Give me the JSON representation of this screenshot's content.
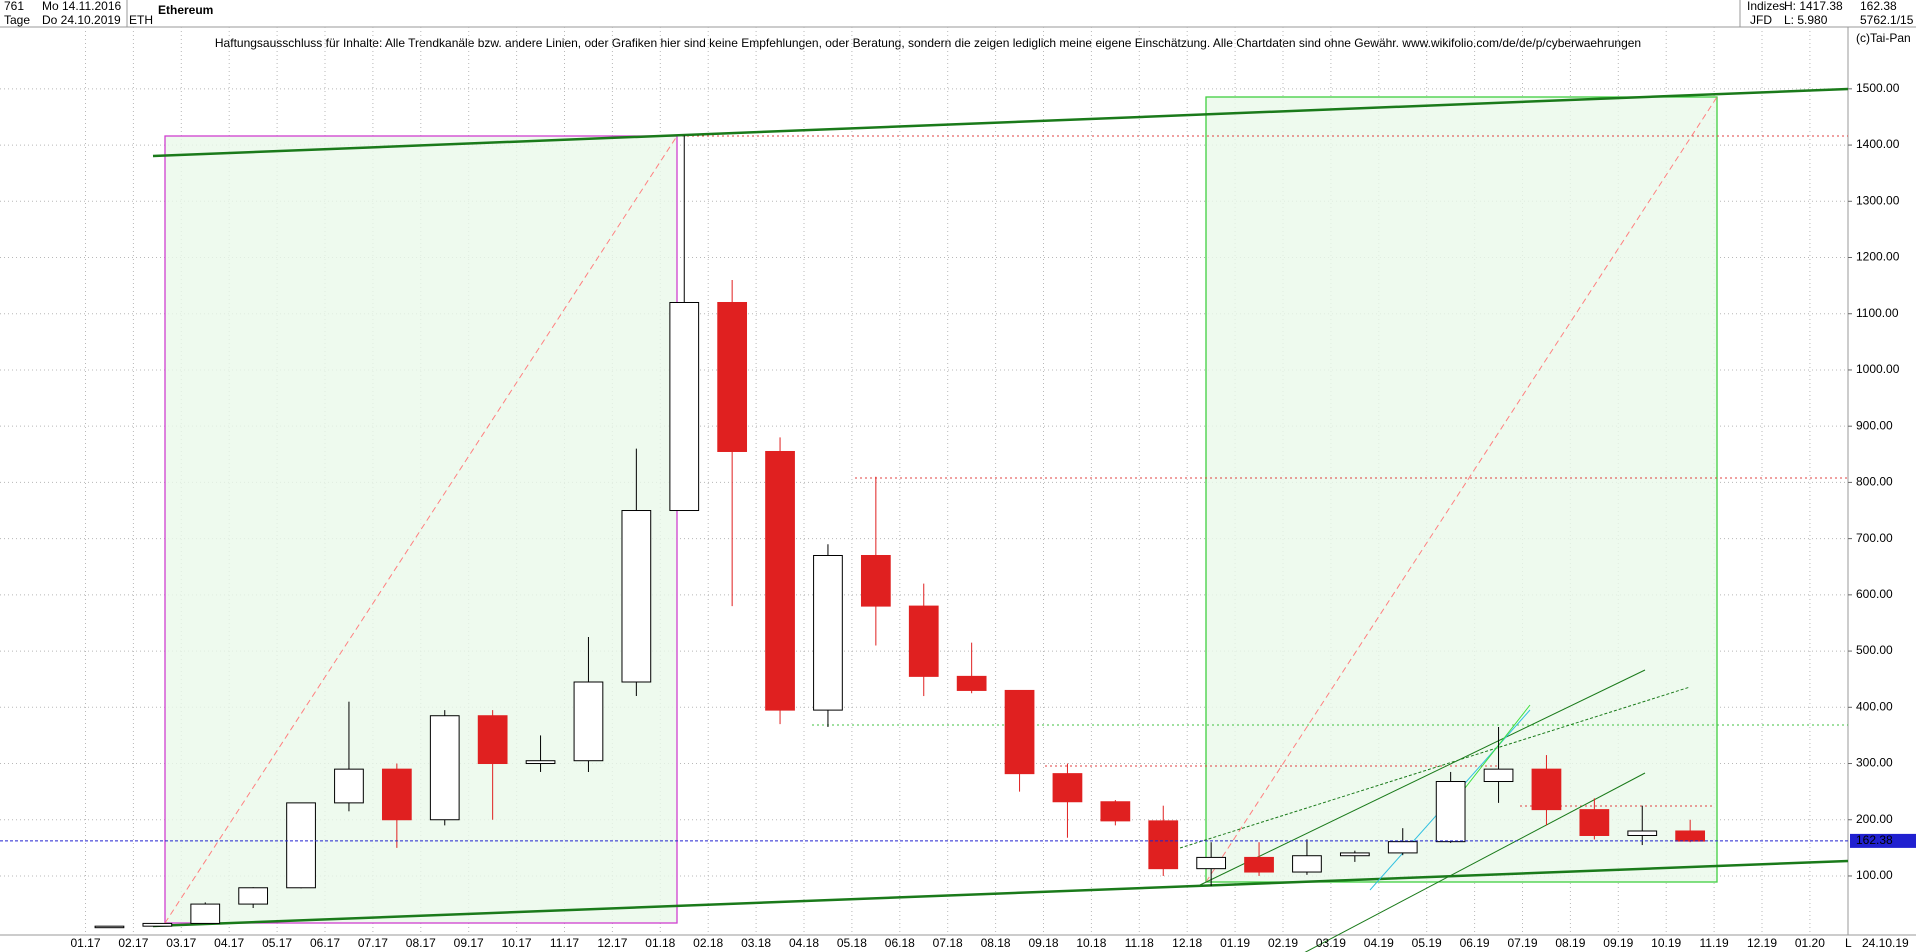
{
  "header": {
    "count": "761",
    "start_date": "Mo 14.11.2016",
    "period": "Tage",
    "end_date": "Do 24.10.2019",
    "symbol": "ETH",
    "name": "Ethereum",
    "market": "Indizes",
    "broker": "JFD",
    "high": "H: 1417.38",
    "low": "L: 5.980",
    "last": "162.38",
    "chart_id": "5762.1/15",
    "copyright": "(c)Tai-Pan",
    "date_label": "24.10.19",
    "scale_mode": "L"
  },
  "chart_data": {
    "type": "candlestick",
    "annotation": "Haftungsausschluss für Inhalte: Alle Trendkanäle bzw. andere Linien, oder Grafiken hier sind keine Empfehlungen, oder Beratung, sondern die zeigen lediglich meine eigene Einschätzung. Alle Chartdaten sind ohne Gewähr.  www.wikifolio.com/de/de/p/cyberwaehrungen",
    "categories": [
      "01.17",
      "02.17",
      "03.17",
      "04.17",
      "05.17",
      "06.17",
      "07.17",
      "08.17",
      "09.17",
      "10.17",
      "11.17",
      "12.17",
      "01.18",
      "02.18",
      "03.18",
      "04.18",
      "05.18",
      "06.18",
      "07.18",
      "08.18",
      "09.18",
      "10.18",
      "11.18",
      "12.18",
      "01.19",
      "02.19",
      "03.19",
      "04.19",
      "05.19",
      "06.19",
      "07.19",
      "08.19",
      "09.19",
      "10.19",
      "11.19",
      "12.19",
      "01.20"
    ],
    "open": [
      8,
      10.7,
      15.6,
      50,
      79,
      230,
      290,
      200,
      385,
      300,
      305,
      445,
      750,
      1120,
      855,
      395,
      670,
      580,
      455,
      430,
      282,
      232,
      198,
      113,
      133,
      107,
      136,
      141,
      161,
      268,
      290,
      218,
      172,
      180,
      null,
      null,
      null
    ],
    "high": [
      11,
      16,
      53,
      80,
      230,
      410,
      300,
      395,
      395,
      350,
      525,
      860,
      1417,
      1160,
      880,
      690,
      810,
      620,
      515,
      430,
      300,
      235,
      225,
      160,
      160,
      165,
      145,
      185,
      285,
      365,
      315,
      238,
      225,
      200,
      null,
      null,
      null
    ],
    "low": [
      8,
      10.5,
      15.5,
      43,
      78,
      215,
      150,
      190,
      200,
      285,
      285,
      420,
      750,
      580,
      370,
      365,
      510,
      420,
      425,
      250,
      168,
      190,
      100,
      82,
      100,
      102,
      125,
      137,
      159,
      230,
      190,
      165,
      155,
      160,
      null,
      null,
      null
    ],
    "close": [
      10.7,
      15.6,
      50,
      79,
      230,
      290,
      200,
      385,
      300,
      305,
      445,
      750,
      1120,
      855,
      395,
      670,
      580,
      455,
      430,
      282,
      232,
      198,
      113,
      133,
      107,
      136,
      141,
      161,
      268,
      290,
      218,
      172,
      180,
      162,
      null,
      null,
      null
    ],
    "up_color": "#000000",
    "down_color": "#e02020",
    "last_price": 162.38,
    "last_price_color": "#2020d0",
    "ylim": [
      -5,
      1610
    ],
    "yticks": [
      {
        "value": 100,
        "label": "100.00"
      },
      {
        "value": 200,
        "label": "200.00"
      },
      {
        "value": 300,
        "label": "300.00"
      },
      {
        "value": 400,
        "label": "400.00"
      },
      {
        "value": 500,
        "label": "500.00"
      },
      {
        "value": 600,
        "label": "600.00"
      },
      {
        "value": 700,
        "label": "700.00"
      },
      {
        "value": 800,
        "label": "800.00"
      },
      {
        "value": 900,
        "label": "900.00"
      },
      {
        "value": 1000,
        "label": "1000.00"
      },
      {
        "value": 1100,
        "label": "1100.00"
      },
      {
        "value": 1200,
        "label": "1200.00"
      },
      {
        "value": 1300,
        "label": "1300.00"
      },
      {
        "value": 1400,
        "label": "1400.00"
      },
      {
        "value": 1500,
        "label": "1500.00"
      }
    ],
    "grid": true
  }
}
